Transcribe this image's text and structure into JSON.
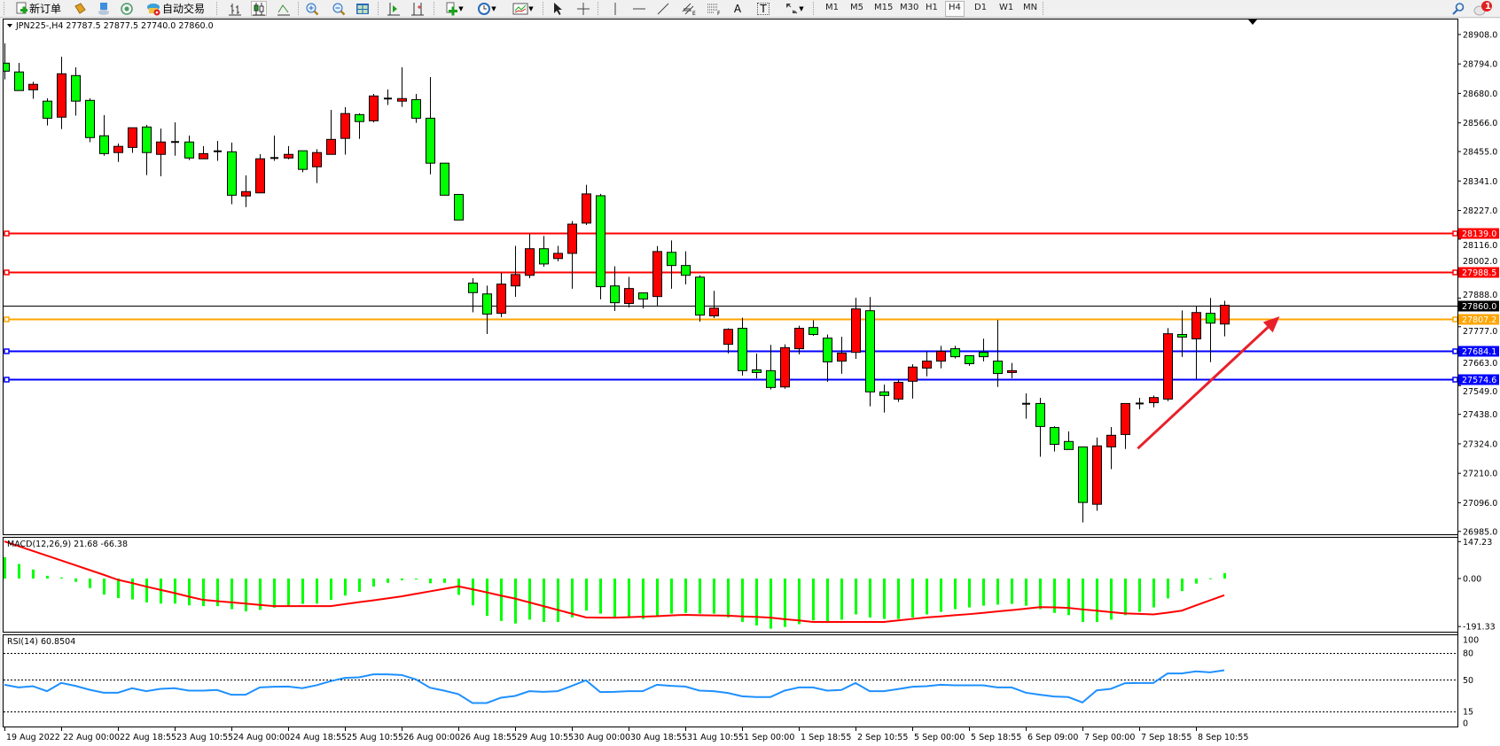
{
  "toolbar": {
    "new_order_label": "新订单",
    "autotrade_label": "自动交易",
    "text_tool_label": "T",
    "text_label_tool": "A",
    "timeframes": [
      "M1",
      "M5",
      "M15",
      "M30",
      "H1",
      "H4",
      "D1",
      "W1",
      "MN"
    ],
    "active_timeframe": "H4",
    "notification_count": "1",
    "icons": [
      "new-order-icon",
      "gold-icon",
      "terminal-icon",
      "signal-icon",
      "autotrade-icon",
      "bar-chart-icon",
      "candlestick-icon",
      "line-chart-icon",
      "zoom-in-icon",
      "zoom-out-icon",
      "tile-icon",
      "auto-scroll-icon",
      "chart-shift-icon",
      "indicators-icon",
      "periods-icon",
      "templates-icon",
      "cursor-icon",
      "crosshair-icon",
      "vertical-line-icon",
      "horizontal-line-icon",
      "trendline-icon",
      "equidistant-channel-icon",
      "fibonacci-icon",
      "text-icon",
      "text-label-icon",
      "arrows-icon",
      "search-icon",
      "notification-icon"
    ]
  },
  "chart_data": [
    {
      "type": "candlestick",
      "title": "JPN225-,H4  27787.5 27877.5 27740.0 27860.0",
      "bull_color": "#ff0000",
      "bear_color": "#00ff00",
      "ylim": [
        26974,
        28966
      ],
      "price_ticks": [
        "28908.0",
        "28794.0",
        "28680.0",
        "28566.0",
        "28455.0",
        "28341.0",
        "28227.0",
        "28116.0",
        "28002.0",
        "27888.0",
        "27777.0",
        "27663.0",
        "27549.0",
        "27438.0",
        "27324.0",
        "27210.0",
        "27096.0",
        "26985.0"
      ],
      "hlines": [
        {
          "value": 28139.0,
          "label": "28139.0",
          "color": "#ff0000"
        },
        {
          "value": 27988.5,
          "label": "27988.5",
          "color": "#ff0000"
        },
        {
          "value": 27807.2,
          "label": "27807.2",
          "color": "#ffa500"
        },
        {
          "value": 27684.1,
          "label": "27684.1",
          "color": "#0000ff"
        },
        {
          "value": 27574.6,
          "label": "27574.6",
          "color": "#0000ff"
        }
      ],
      "bid": {
        "value": 27860.0,
        "label": "27860.0",
        "color": "#000000"
      },
      "arrow": {
        "color": "#e8202a",
        "from": {
          "bar": 80.9,
          "price": 27306
        },
        "to": {
          "bar": 90.9,
          "price": 27817
        }
      },
      "time_labels": [
        {
          "bar": 1,
          "label": "19 Aug 2022"
        },
        {
          "bar": 5,
          "label": "22 Aug 00:00"
        },
        {
          "bar": 9,
          "label": "22 Aug 18:55"
        },
        {
          "bar": 13,
          "label": "23 Aug 10:55"
        },
        {
          "bar": 17,
          "label": "24 Aug 00:00"
        },
        {
          "bar": 21,
          "label": "24 Aug 18:55"
        },
        {
          "bar": 25,
          "label": "25 Aug 10:55"
        },
        {
          "bar": 29,
          "label": "26 Aug 00:00"
        },
        {
          "bar": 33,
          "label": "26 Aug 18:55"
        },
        {
          "bar": 37,
          "label": "29 Aug 10:55"
        },
        {
          "bar": 41,
          "label": "30 Aug 00:00"
        },
        {
          "bar": 45,
          "label": "30 Aug 18:55"
        },
        {
          "bar": 49,
          "label": "31 Aug 10:55"
        },
        {
          "bar": 53,
          "label": "1 Sep 00:00"
        },
        {
          "bar": 57,
          "label": "1 Sep 18:55"
        },
        {
          "bar": 61,
          "label": "2 Sep 10:55"
        },
        {
          "bar": 65,
          "label": "5 Sep 00:00"
        },
        {
          "bar": 69,
          "label": "5 Sep 18:55"
        },
        {
          "bar": 73,
          "label": "6 Sep 09:00"
        },
        {
          "bar": 77,
          "label": "7 Sep 00:00"
        },
        {
          "bar": 81,
          "label": "7 Sep 18:55"
        },
        {
          "bar": 85,
          "label": "8 Sep 10:55"
        }
      ],
      "ohlc": [
        [
          28797,
          28874,
          28734,
          28766
        ],
        [
          28763,
          28798,
          28691,
          28691
        ],
        [
          28694,
          28725,
          28659,
          28715
        ],
        [
          28650,
          28661,
          28556,
          28584
        ],
        [
          28588,
          28822,
          28542,
          28756
        ],
        [
          28749,
          28781,
          28594,
          28650
        ],
        [
          28653,
          28661,
          28491,
          28509
        ],
        [
          28516,
          28596,
          28439,
          28447
        ],
        [
          28451,
          28486,
          28415,
          28475
        ],
        [
          28471,
          28547,
          28450,
          28547
        ],
        [
          28550,
          28558,
          28364,
          28451
        ],
        [
          28444,
          28544,
          28359,
          28492
        ],
        [
          28492,
          28568,
          28439,
          28490
        ],
        [
          28492,
          28517,
          28422,
          28430
        ],
        [
          28427,
          28476,
          28427,
          28447
        ],
        [
          28456,
          28496,
          28419,
          28454
        ],
        [
          28454,
          28490,
          28251,
          28286
        ],
        [
          28283,
          28363,
          28240,
          28300
        ],
        [
          28295,
          28445,
          28295,
          28427
        ],
        [
          28429,
          28517,
          28419,
          28430
        ],
        [
          28430,
          28476,
          28425,
          28444
        ],
        [
          28458,
          28458,
          28375,
          28386
        ],
        [
          28396,
          28464,
          28333,
          28451
        ],
        [
          28444,
          28616,
          28444,
          28502
        ],
        [
          28506,
          28627,
          28443,
          28602
        ],
        [
          28598,
          28603,
          28504,
          28571
        ],
        [
          28574,
          28678,
          28568,
          28670
        ],
        [
          28659,
          28695,
          28635,
          28660
        ],
        [
          28650,
          28781,
          28628,
          28660
        ],
        [
          28656,
          28678,
          28566,
          28584
        ],
        [
          28584,
          28743,
          28367,
          28410
        ],
        [
          28410,
          28410,
          28286,
          28286
        ],
        [
          28289,
          28289,
          28190,
          28190
        ],
        [
          27946,
          27965,
          27833,
          27909
        ],
        [
          27904,
          27936,
          27749,
          27826
        ],
        [
          27829,
          27985,
          27814,
          27942
        ],
        [
          27935,
          28090,
          27893,
          27979
        ],
        [
          27976,
          28136,
          27965,
          28079
        ],
        [
          28079,
          28128,
          28009,
          28020
        ],
        [
          28041,
          28090,
          28030,
          28061
        ],
        [
          28061,
          28186,
          27924,
          28174
        ],
        [
          28178,
          28326,
          28171,
          28291
        ],
        [
          28284,
          28291,
          27883,
          27932
        ],
        [
          27935,
          28011,
          27838,
          27870
        ],
        [
          27867,
          27970,
          27852,
          27925
        ],
        [
          27908,
          27908,
          27848,
          27884
        ],
        [
          27894,
          28089,
          27857,
          28068
        ],
        [
          28065,
          28111,
          27924,
          28014
        ],
        [
          28014,
          28069,
          27941,
          27976
        ],
        [
          27969,
          27976,
          27797,
          27822
        ],
        [
          27819,
          27916,
          27811,
          27849
        ],
        [
          27709,
          27771,
          27674,
          27767
        ],
        [
          27771,
          27812,
          27588,
          27607
        ],
        [
          27610,
          27673,
          27577,
          27600
        ],
        [
          27607,
          27707,
          27534,
          27542
        ],
        [
          27544,
          27709,
          27537,
          27696
        ],
        [
          27692,
          27781,
          27670,
          27771
        ],
        [
          27774,
          27802,
          27742,
          27747
        ],
        [
          27733,
          27747,
          27564,
          27641
        ],
        [
          27644,
          27738,
          27595,
          27675
        ],
        [
          27678,
          27889,
          27653,
          27846
        ],
        [
          27839,
          27892,
          27469,
          27525
        ],
        [
          27525,
          27553,
          27445,
          27511
        ],
        [
          27497,
          27572,
          27486,
          27562
        ],
        [
          27566,
          27632,
          27499,
          27621
        ],
        [
          27617,
          27682,
          27585,
          27644
        ],
        [
          27644,
          27703,
          27616,
          27682
        ],
        [
          27692,
          27703,
          27654,
          27661
        ],
        [
          27665,
          27665,
          27626,
          27634
        ],
        [
          27678,
          27731,
          27643,
          27661
        ],
        [
          27644,
          27803,
          27544,
          27596
        ],
        [
          27600,
          27637,
          27578,
          27607
        ],
        [
          27479,
          27519,
          27421,
          27478
        ],
        [
          27480,
          27502,
          27274,
          27391
        ],
        [
          27387,
          27392,
          27294,
          27322
        ],
        [
          27333,
          27372,
          27302,
          27302
        ],
        [
          27312,
          27312,
          27020,
          27097
        ],
        [
          27090,
          27348,
          27065,
          27316
        ],
        [
          27312,
          27389,
          27226,
          27357
        ],
        [
          27360,
          27480,
          27304,
          27480
        ],
        [
          27479,
          27502,
          27458,
          27480
        ],
        [
          27483,
          27511,
          27465,
          27503
        ],
        [
          27497,
          27772,
          27489,
          27750
        ],
        [
          27747,
          27840,
          27660,
          27737
        ],
        [
          27730,
          27857,
          27575,
          27832
        ],
        [
          27829,
          27888,
          27640,
          27791
        ],
        [
          27787.5,
          27877.5,
          27740.0,
          27860.0
        ]
      ]
    },
    {
      "type": "bar",
      "title": "MACD(12,26,9) 21.68 -66.38",
      "hist_color": "#00ff00",
      "signal_color": "#ff0000",
      "ylim": [
        -212,
        166
      ],
      "ticks": [
        "147.23",
        "0.00",
        "-191.33"
      ],
      "histogram": [
        85,
        58,
        36,
        11,
        4,
        -13,
        -38,
        -64,
        -78,
        -83,
        -95,
        -100,
        -100,
        -107,
        -110,
        -110,
        -122,
        -131,
        -125,
        -116,
        -110,
        -101,
        -100,
        -85,
        -68,
        -53,
        -32,
        -17,
        -7,
        -2,
        -19,
        -17,
        -65,
        -107,
        -149,
        -169,
        -179,
        -164,
        -173,
        -173,
        -155,
        -128,
        -140,
        -155,
        -155,
        -161,
        -149,
        -140,
        -137,
        -140,
        -140,
        -155,
        -173,
        -187,
        -200,
        -193,
        -182,
        -167,
        -170,
        -164,
        -143,
        -155,
        -161,
        -161,
        -155,
        -143,
        -133,
        -122,
        -115,
        -108,
        -104,
        -101,
        -108,
        -122,
        -137,
        -146,
        -173,
        -173,
        -164,
        -146,
        -133,
        -115,
        -79,
        -50,
        -20,
        1,
        21.68
      ],
      "signal": [
        148,
        129,
        110,
        91,
        72,
        53,
        34,
        15,
        -5,
        -18,
        -32,
        -45,
        -58,
        -72,
        -85,
        -90,
        -95,
        -100,
        -105,
        -110,
        -110,
        -110,
        -110,
        -110,
        -102,
        -94,
        -87,
        -79,
        -71,
        -61,
        -51,
        -41,
        -31,
        -43,
        -55,
        -68,
        -80,
        -95,
        -110,
        -125,
        -140,
        -155,
        -156,
        -156,
        -154,
        -152,
        -150,
        -147,
        -145,
        -146,
        -147,
        -148,
        -151,
        -153,
        -156,
        -162,
        -167,
        -173,
        -173,
        -173,
        -173,
        -173,
        -173,
        -167,
        -161,
        -155,
        -151,
        -146,
        -142,
        -137,
        -131,
        -126,
        -120,
        -114,
        -115,
        -117,
        -123,
        -128,
        -134,
        -139,
        -141,
        -143,
        -136,
        -128,
        -107,
        -87,
        -66.38
      ]
    },
    {
      "type": "line",
      "title": "RSI(14) 60.8504",
      "line_color": "#1e90ff",
      "ylim": [
        -2,
        101
      ],
      "levels": [
        80,
        50,
        15
      ],
      "ticks": [
        "100",
        "80",
        "50",
        "15",
        "0"
      ],
      "values": [
        44.7,
        41.7,
        43.1,
        37.5,
        46.7,
        43.4,
        39.1,
        35.8,
        35.8,
        40.8,
        37.5,
        40.1,
        40.8,
        38.1,
        38.1,
        38.8,
        33.5,
        33.5,
        41.7,
        42.4,
        42.7,
        40.8,
        44.1,
        48.7,
        52.3,
        53.0,
        56.3,
        56.3,
        55.6,
        50.7,
        41.4,
        38.1,
        34.2,
        24.3,
        24.3,
        30.2,
        32.2,
        37.5,
        36.8,
        37.5,
        43.4,
        49.7,
        36.5,
        36.8,
        37.5,
        37.5,
        44.7,
        43.4,
        42.7,
        38.1,
        37.5,
        35.5,
        31.8,
        30.9,
        30.9,
        38.1,
        41.7,
        41.7,
        38.1,
        38.8,
        46.7,
        37.5,
        37.5,
        39.8,
        42.4,
        43.1,
        44.7,
        44.1,
        44.1,
        44.1,
        41.7,
        41.7,
        35.8,
        33.5,
        31.5,
        30.9,
        24.9,
        38.4,
        40.1,
        46.4,
        46.7,
        46.7,
        57.3,
        57.3,
        59.6,
        58.6,
        60.85
      ]
    }
  ]
}
